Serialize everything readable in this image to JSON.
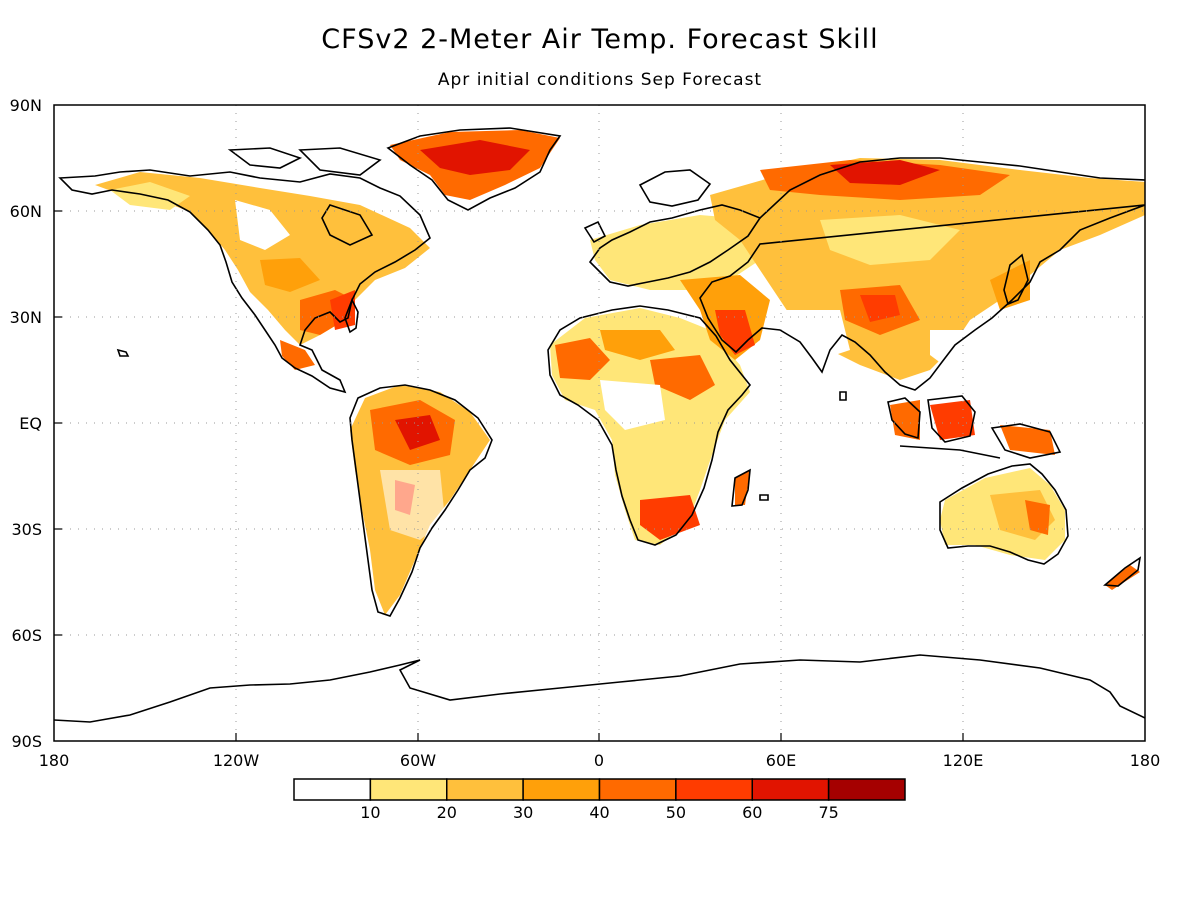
{
  "title": "CFSv2 2-Meter Air Temp. Forecast Skill",
  "subtitle": "Apr initial conditions  Sep Forecast",
  "map": {
    "lat_ticks": [
      "90N",
      "60N",
      "30N",
      "EQ",
      "30S",
      "60S",
      "90S"
    ],
    "lat_values": [
      90,
      60,
      30,
      0,
      -30,
      -60,
      -90
    ],
    "lon_ticks": [
      "180",
      "120W",
      "60W",
      "0",
      "60E",
      "120E",
      "180"
    ],
    "lon_values": [
      -180,
      -120,
      -60,
      0,
      60,
      120,
      180
    ],
    "grid": "dotted"
  },
  "colorbar": {
    "labels": [
      "10",
      "20",
      "30",
      "40",
      "50",
      "60",
      "75"
    ],
    "colors": [
      "#ffffff",
      "#ffe678",
      "#ffc03c",
      "#ffa00a",
      "#ff6a00",
      "#ff3c00",
      "#e11400",
      "#a50000"
    ]
  }
}
